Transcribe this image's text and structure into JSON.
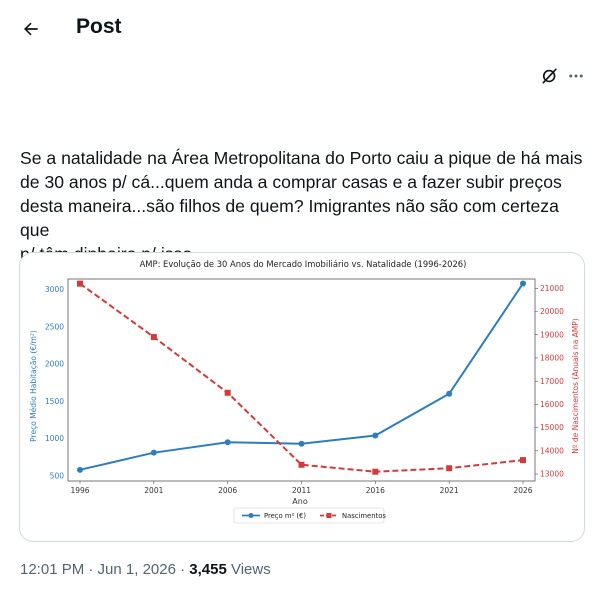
{
  "header": {
    "title": "Post"
  },
  "post": {
    "text_lines": [
      "Se a natalidade na Área Metropolitana do Porto  caiu a pique de há mais",
      "de 30 anos p/ cá...quem anda a comprar casas e a fazer subir preços",
      "desta maneira...são filhos de quem? Imigrantes não são com certeza que",
      "n/ têm dinheiro p/ isso..."
    ],
    "timestamp": "12:01 PM · Jun 1, 2026",
    "separator": " · ",
    "views_count": "3,455",
    "views_label": " Views"
  },
  "icons": {
    "back": "arrow-left-icon",
    "grok": "grok-icon",
    "more": "more-icon"
  },
  "chart_data": {
    "type": "line",
    "title": "AMP: Evolução de 30 Anos do Mercado Imobiliário vs. Natalidade (1996-2026)",
    "xlabel": "Ano",
    "ylabel_left": "Preço Médio Habitação (€/m²)",
    "ylabel_right": "Nº de Nascimentos (Anuais na AMP)",
    "x": [
      1996,
      2001,
      2006,
      2011,
      2016,
      2021,
      2026
    ],
    "left_ticks": [
      500,
      1000,
      1500,
      2000,
      2500,
      3000
    ],
    "right_ticks": [
      13000,
      14000,
      15000,
      16000,
      17000,
      18000,
      19000,
      20000,
      21000
    ],
    "left_ylim": [
      430,
      3140
    ],
    "right_ylim": [
      12700,
      21400
    ],
    "series": [
      {
        "name": "Preço m² (€)",
        "axis": "left",
        "color": "#2e7dbf",
        "style": "solid",
        "marker": "circle",
        "values": [
          580,
          810,
          950,
          930,
          1040,
          1600,
          3080
        ]
      },
      {
        "name": "Nascimentos",
        "axis": "right",
        "color": "#d43a3a",
        "style": "dashed",
        "marker": "square",
        "values": [
          21200,
          18900,
          16500,
          13400,
          13100,
          13250,
          13600
        ]
      }
    ],
    "legend_position": "bottom-center",
    "grid": true
  }
}
